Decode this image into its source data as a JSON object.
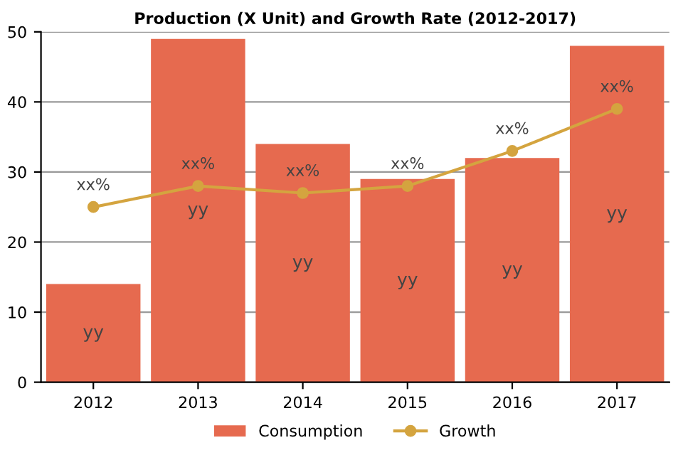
{
  "chart_data": {
    "type": "bar",
    "title": "Production (X Unit) and Growth Rate (2012-2017)",
    "categories": [
      "2012",
      "2013",
      "2014",
      "2015",
      "2016",
      "2017"
    ],
    "series": [
      {
        "name": "Consumption",
        "color": "#e66a4f",
        "values": [
          14,
          49,
          34,
          29,
          32,
          48
        ],
        "value_labels": [
          "yy",
          "yy",
          "yy",
          "yy",
          "yy",
          "yy"
        ]
      },
      {
        "name": "Growth",
        "type": "line",
        "color": "#d4a43f",
        "values": [
          25,
          28,
          27,
          28,
          33,
          39
        ],
        "value_labels": [
          "xx%",
          "xx%",
          "xx%",
          "xx%",
          "xx%",
          "xx%"
        ],
        "marker": "circle"
      }
    ],
    "ylim": [
      0,
      50
    ],
    "yticks": [
      0,
      10,
      20,
      30,
      40,
      50
    ],
    "grid": "y",
    "legend": "bottom"
  }
}
